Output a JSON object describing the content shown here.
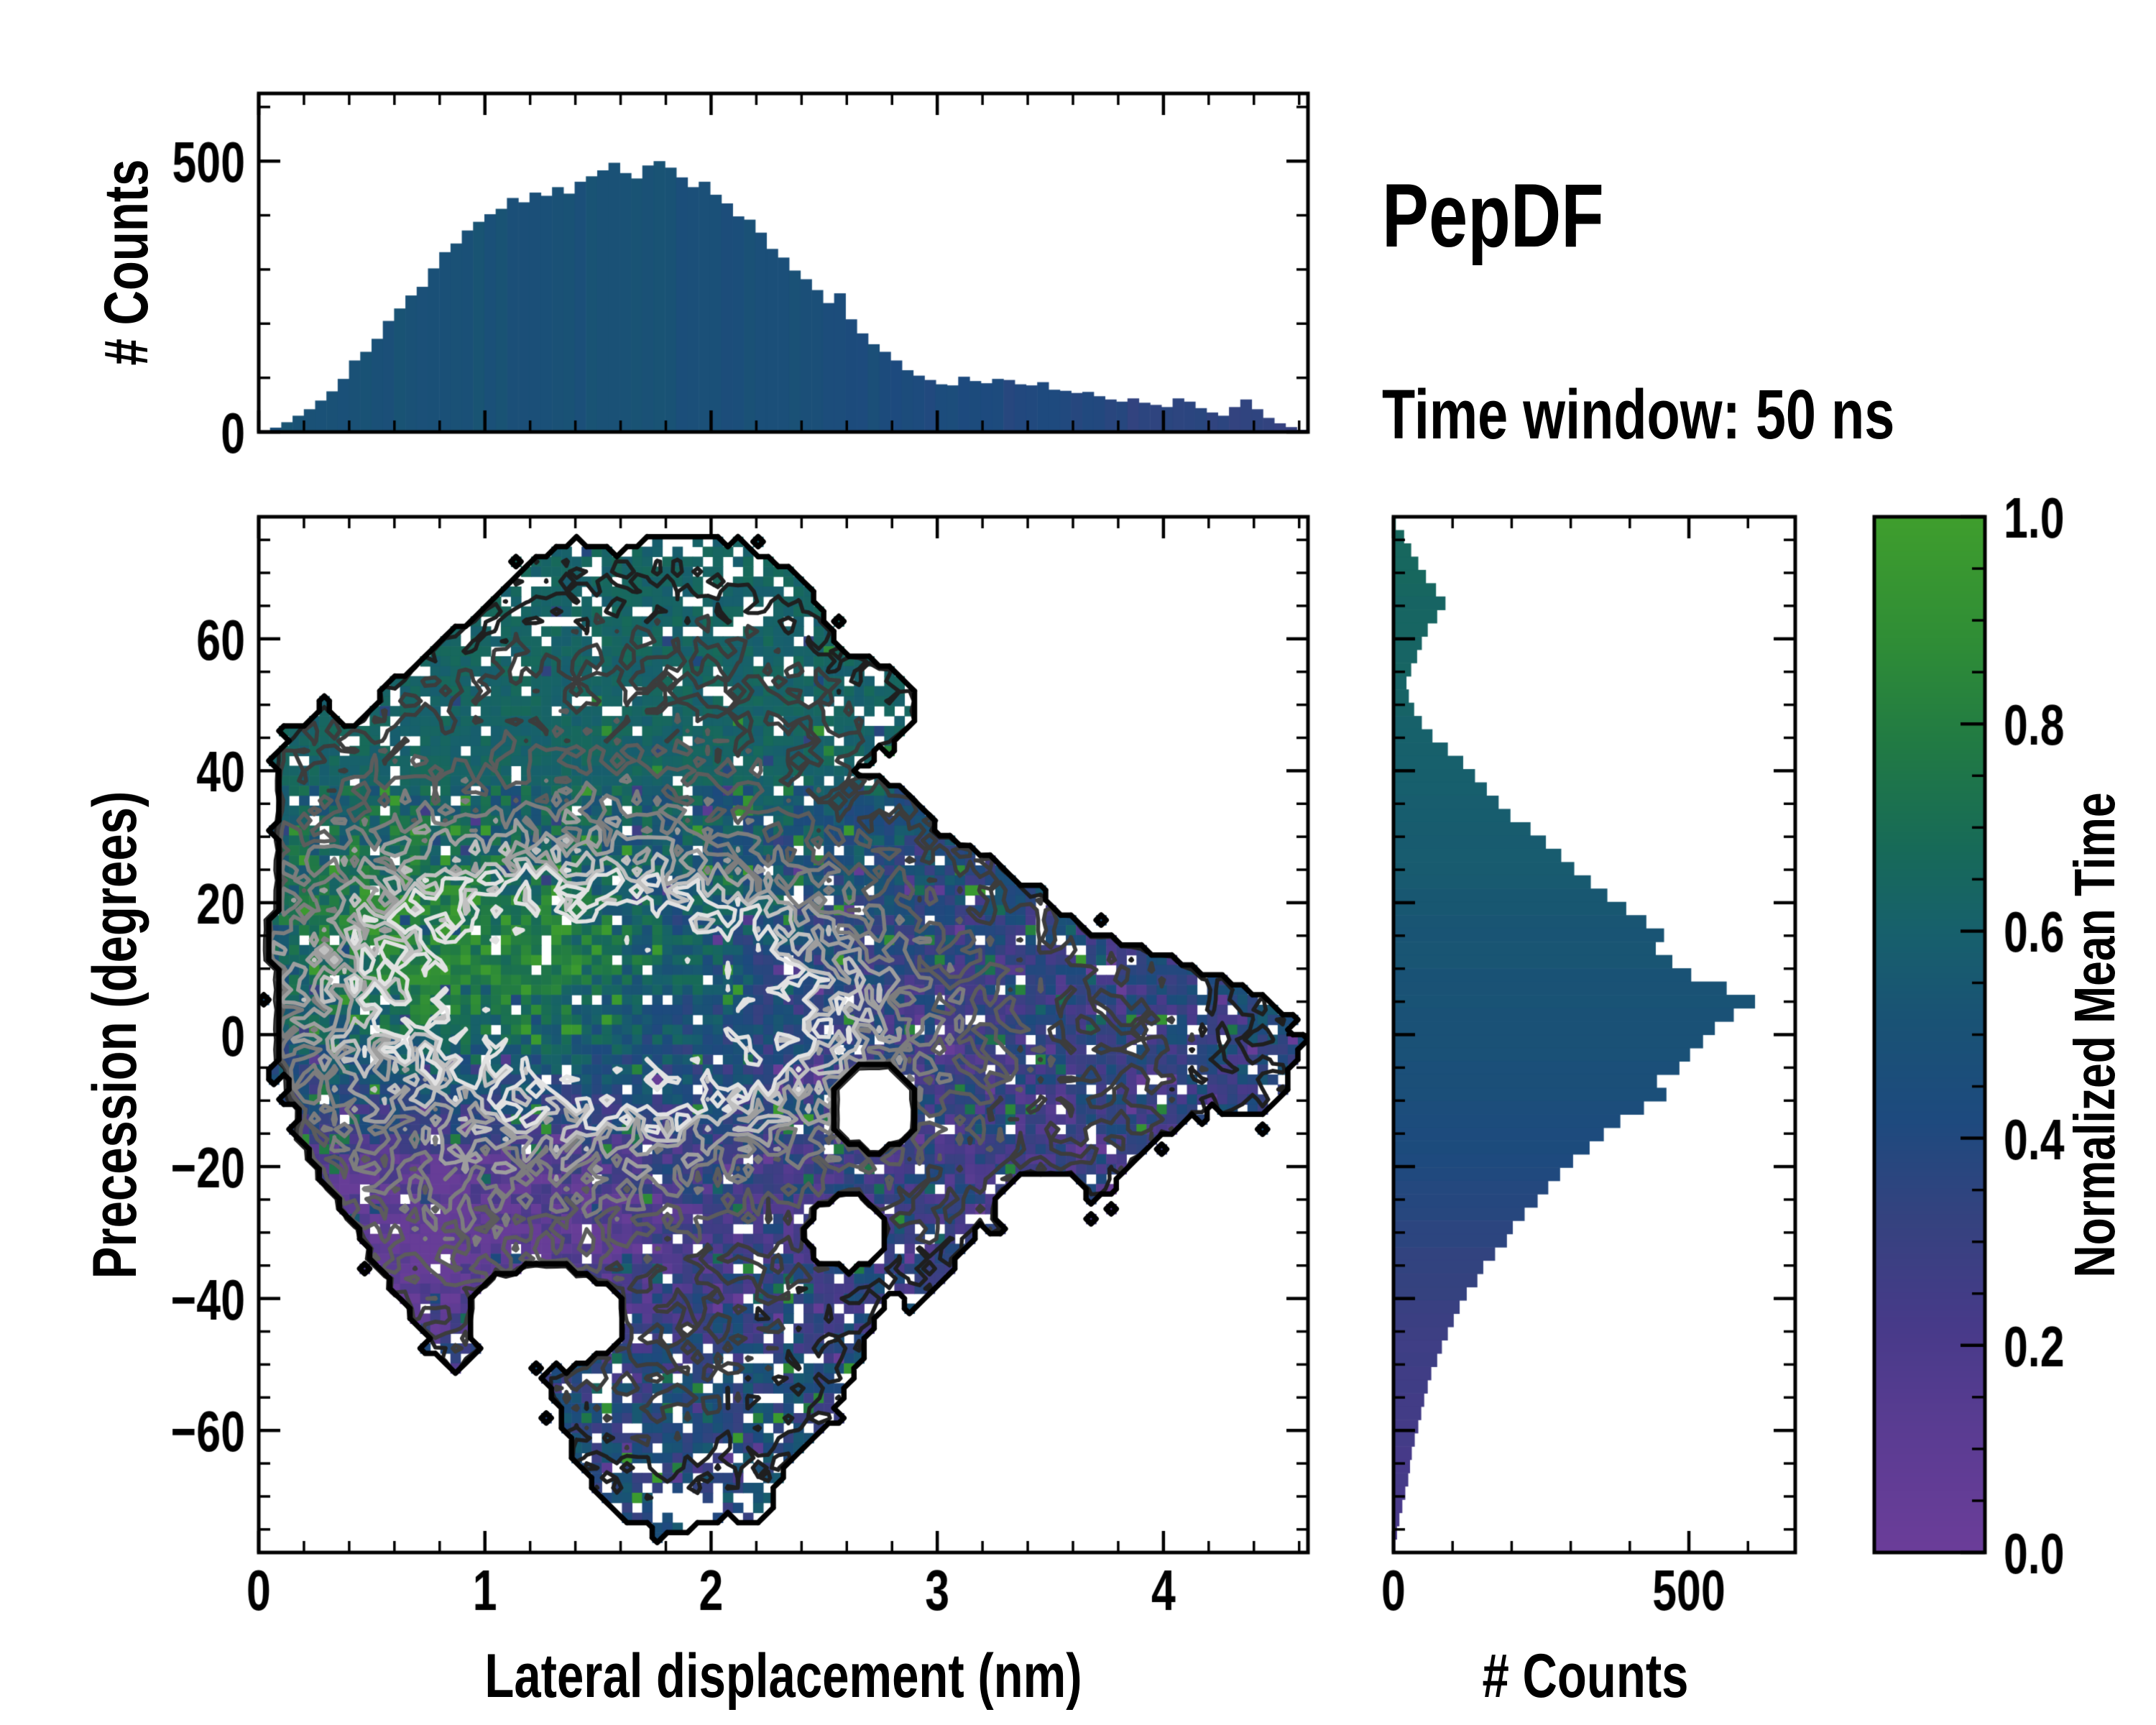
{
  "title": {
    "text": "PepDF",
    "subtitle": "Time window: 50 ns"
  },
  "axes": {
    "main": {
      "xlabel": "Lateral displacement (nm)",
      "ylabel": "Precession (degrees)",
      "xlim": [
        0,
        4.639
      ],
      "ylim": [
        -78.5,
        78.5
      ],
      "xticks": [
        0,
        1,
        2,
        3,
        4
      ],
      "xtick_labels": [
        "0",
        "1",
        "2",
        "3",
        "4"
      ],
      "x_minor": 0.2,
      "yticks": [
        60,
        40,
        20,
        0,
        -20,
        -40,
        -60
      ],
      "ytick_labels": [
        "60",
        "40",
        "20",
        "0",
        "−20",
        "−40",
        "−60"
      ],
      "y_minor": 5
    },
    "top": {
      "ylabel": "# Counts",
      "ylim": [
        0,
        625
      ],
      "yticks": [
        0,
        500
      ],
      "ytick_labels": [
        "0",
        "500"
      ],
      "y_minor": 100
    },
    "right": {
      "xlabel": "# Counts",
      "xlim": [
        0,
        680
      ],
      "xticks": [
        0,
        500
      ],
      "xtick_labels": [
        "0",
        "500"
      ],
      "x_minor": 100
    }
  },
  "colormap": {
    "label": "Normalized Mean Time",
    "ticks": [
      1.0,
      0.8,
      0.6,
      0.4,
      0.2,
      0.0
    ],
    "tick_labels": [
      "1.0",
      "0.8",
      "0.6",
      "0.4",
      "0.2",
      "0.0"
    ],
    "minor_step": 0.05,
    "stops": [
      [
        0.0,
        "#6b3d99"
      ],
      [
        0.12,
        "#5a3c92"
      ],
      [
        0.22,
        "#473a89"
      ],
      [
        0.32,
        "#35427f"
      ],
      [
        0.42,
        "#1d4a7e"
      ],
      [
        0.52,
        "#195374"
      ],
      [
        0.6,
        "#17606c"
      ],
      [
        0.68,
        "#176a58"
      ],
      [
        0.78,
        "#217a44"
      ],
      [
        0.88,
        "#2f8d36"
      ],
      [
        1.0,
        "#3f9e2d"
      ]
    ]
  },
  "chart_data": [
    {
      "type": "bar",
      "name": "top-marginal-histogram",
      "xlabel": "Lateral displacement (nm)",
      "ylabel": "# Counts",
      "x_start": 0,
      "bin_width": 0.05,
      "ylim": [
        0,
        625
      ],
      "values": [
        2,
        8,
        18,
        30,
        42,
        58,
        75,
        98,
        132,
        148,
        172,
        205,
        228,
        252,
        268,
        302,
        332,
        348,
        372,
        388,
        402,
        412,
        432,
        424,
        442,
        436,
        452,
        440,
        462,
        472,
        483,
        497,
        478,
        468,
        492,
        500,
        488,
        470,
        452,
        462,
        438,
        422,
        398,
        392,
        368,
        338,
        322,
        298,
        282,
        262,
        238,
        256,
        208,
        182,
        162,
        148,
        132,
        114,
        104,
        96,
        88,
        86,
        102,
        94,
        90,
        98,
        96,
        88,
        86,
        92,
        78,
        76,
        72,
        74,
        66,
        60,
        56,
        62,
        54,
        50,
        46,
        62,
        56,
        44,
        36,
        30,
        46,
        60,
        42,
        26,
        16,
        9,
        4
      ],
      "bar_value_tint_breakpoints": [
        [
          0,
          0.5
        ],
        [
          1.0,
          0.5
        ],
        [
          2.0,
          0.49
        ],
        [
          2.6,
          0.46
        ],
        [
          3.0,
          0.43
        ],
        [
          3.6,
          0.38
        ],
        [
          4.2,
          0.34
        ],
        [
          4.64,
          0.32
        ]
      ],
      "tint_noise": 0.06
    },
    {
      "type": "heatmap",
      "name": "main-2d-histogram",
      "description": "2D histogram of lateral displacement vs precession, colored by normalized mean time, with grayscale count contours and black occupancy outline",
      "xlim": [
        0,
        4.639
      ],
      "ylim": [
        -78.5,
        78.5
      ],
      "grid": {
        "nx": 104,
        "ny": 104
      },
      "seed": 12345,
      "boundary_polygon": [
        [
          0.1,
          44
        ],
        [
          0.28,
          50
        ],
        [
          0.42,
          46
        ],
        [
          0.55,
          52
        ],
        [
          0.72,
          57
        ],
        [
          0.88,
          61
        ],
        [
          1.02,
          66
        ],
        [
          1.18,
          71
        ],
        [
          1.38,
          75
        ],
        [
          1.6,
          73
        ],
        [
          1.8,
          76
        ],
        [
          2.02,
          75
        ],
        [
          2.22,
          73
        ],
        [
          2.4,
          69
        ],
        [
          2.5,
          64
        ],
        [
          2.58,
          58
        ],
        [
          2.8,
          56
        ],
        [
          2.92,
          51
        ],
        [
          2.86,
          45
        ],
        [
          2.7,
          43
        ],
        [
          2.62,
          40
        ],
        [
          2.8,
          38
        ],
        [
          2.94,
          35
        ],
        [
          3.02,
          30
        ],
        [
          3.18,
          28
        ],
        [
          3.4,
          22
        ],
        [
          3.65,
          16
        ],
        [
          3.9,
          13
        ],
        [
          4.15,
          10
        ],
        [
          4.38,
          7
        ],
        [
          4.55,
          3
        ],
        [
          4.6,
          -3
        ],
        [
          4.52,
          -9
        ],
        [
          4.38,
          -13
        ],
        [
          4.2,
          -11
        ],
        [
          4.02,
          -15
        ],
        [
          3.85,
          -20
        ],
        [
          3.68,
          -26
        ],
        [
          3.52,
          -24
        ],
        [
          3.36,
          -31
        ],
        [
          3.18,
          -29
        ],
        [
          3.05,
          -36
        ],
        [
          2.92,
          -41
        ],
        [
          2.78,
          -39
        ],
        [
          2.68,
          -47
        ],
        [
          2.58,
          -55
        ],
        [
          2.47,
          -61
        ],
        [
          2.3,
          -67
        ],
        [
          2.24,
          -74
        ],
        [
          2.05,
          -73
        ],
        [
          1.85,
          -76
        ],
        [
          1.65,
          -74
        ],
        [
          1.5,
          -70
        ],
        [
          1.4,
          -64
        ],
        [
          1.33,
          -57
        ],
        [
          1.24,
          -51
        ],
        [
          1.1,
          -49
        ],
        [
          0.98,
          -47
        ],
        [
          0.86,
          -51
        ],
        [
          0.72,
          -45
        ],
        [
          0.6,
          -39
        ],
        [
          0.5,
          -34
        ],
        [
          0.4,
          -28
        ],
        [
          0.3,
          -23
        ],
        [
          0.21,
          -17
        ],
        [
          0.14,
          -9
        ],
        [
          0.09,
          -1
        ],
        [
          0.07,
          8
        ],
        [
          0.06,
          16
        ],
        [
          0.09,
          24
        ],
        [
          0.07,
          32
        ],
        [
          0.09,
          39
        ]
      ],
      "holes": [
        {
          "x": 1.27,
          "y": -43,
          "rx": 0.34,
          "ry": 8.0
        },
        {
          "x": 2.72,
          "y": -11,
          "rx": 0.2,
          "ry": 6.5
        },
        {
          "x": 2.6,
          "y": -30,
          "rx": 0.18,
          "ry": 5.5
        },
        {
          "x": 3.46,
          "y": -26,
          "rx": 0.2,
          "ry": 5.5
        }
      ],
      "count_blobs": [
        {
          "x": 1.25,
          "y": 8,
          "sx": 0.55,
          "sy": 13,
          "amp": 27
        },
        {
          "x": 1.95,
          "y": 3,
          "sx": 0.5,
          "sy": 11,
          "amp": 23
        },
        {
          "x": 1.6,
          "y": 5,
          "sx": 1.1,
          "sy": 26,
          "amp": 9
        },
        {
          "x": 1.7,
          "y": 52,
          "sx": 0.9,
          "sy": 15,
          "amp": 2.2
        },
        {
          "x": 0.4,
          "y": 12,
          "sx": 0.5,
          "sy": 18,
          "amp": 6
        },
        {
          "x": 3.4,
          "y": -6,
          "sx": 0.9,
          "sy": 18,
          "amp": 2.6
        },
        {
          "x": 1.8,
          "y": -56,
          "sx": 0.55,
          "sy": 11,
          "amp": 2.4
        },
        {
          "x": 0.8,
          "y": -28,
          "sx": 0.6,
          "sy": 13,
          "amp": 4
        }
      ],
      "count_noise": {
        "base": 0.55,
        "spread": 0.9
      },
      "occupancy": {
        "threshold": 0.45,
        "hole_scale": 0.38,
        "hole_decay": 3.2,
        "hole_min": 0.035,
        "outside_spark_p": 0.07,
        "outside_spark_dist": 0.075
      },
      "value_y_breakpoints": [
        [
          78.5,
          0.63
        ],
        [
          42,
          0.62
        ],
        [
          34,
          0.56
        ],
        [
          24,
          0.53
        ],
        [
          12,
          0.5
        ],
        [
          0,
          0.47
        ],
        [
          -10,
          0.43
        ],
        [
          -20,
          0.35
        ],
        [
          -32,
          0.3
        ],
        [
          -48,
          0.4
        ],
        [
          -62,
          0.44
        ],
        [
          -78.5,
          0.45
        ]
      ],
      "value_blobs": [
        {
          "x": 1.15,
          "y": 11,
          "sx": 0.5,
          "sy": 12,
          "amp": 0.3
        },
        {
          "x": 0.45,
          "y": 16,
          "sx": 0.35,
          "sy": 14,
          "amp": 0.18
        },
        {
          "x": 0.8,
          "y": -30,
          "sx": 0.7,
          "sy": 14,
          "amp": -0.3
        },
        {
          "x": 3.35,
          "y": 6,
          "sx": 0.8,
          "sy": 18,
          "amp": -0.2
        }
      ],
      "value_noise": 0.16,
      "sparks": {
        "green_p": 0.05,
        "green_amp": 0.33,
        "purple_p": 0.03,
        "purple_amp": -0.3
      },
      "uniform_top": {
        "y_above": 38,
        "v": 0.63,
        "noise": 0.05,
        "green_p": 0.012,
        "purple_p": 0.008,
        "spark_amp": 0.25
      },
      "contours": {
        "boundary_level": 0.5,
        "boundary_color": "#000000",
        "boundary_width": 7.5,
        "levels": [
          1.6,
          3.2,
          6,
          9.5,
          14,
          19,
          24
        ],
        "colors": [
          "#1f1f1f",
          "#3c3c3c",
          "#5c5c5c",
          "#7d7d7d",
          "#9e9e9e",
          "#c0c0c0",
          "#e2e2e2"
        ],
        "width": 5.5
      }
    },
    {
      "type": "bar",
      "name": "right-marginal-histogram",
      "orientation": "horizontal",
      "xlabel": "# Counts",
      "ylabel": "Precession (degrees)",
      "y_start": 78.5,
      "bin_height": -2.013,
      "xlim": [
        0,
        680
      ],
      "values": [
        4,
        18,
        30,
        42,
        55,
        72,
        88,
        74,
        58,
        48,
        40,
        30,
        22,
        26,
        35,
        48,
        66,
        92,
        118,
        138,
        158,
        178,
        198,
        232,
        258,
        284,
        306,
        334,
        362,
        394,
        428,
        458,
        444,
        472,
        504,
        564,
        612,
        576,
        544,
        524,
        502,
        484,
        446,
        462,
        424,
        384,
        356,
        332,
        304,
        282,
        262,
        244,
        222,
        202,
        192,
        172,
        152,
        142,
        124,
        112,
        102,
        92,
        82,
        74,
        64,
        58,
        52,
        47,
        42,
        36,
        31,
        28,
        25,
        20,
        15,
        10,
        6,
        3
      ],
      "row_value_breakpoints": [
        [
          78.5,
          0.66
        ],
        [
          55,
          0.63
        ],
        [
          40,
          0.6
        ],
        [
          25,
          0.56
        ],
        [
          10,
          0.52
        ],
        [
          0,
          0.5
        ],
        [
          -15,
          0.44
        ],
        [
          -30,
          0.36
        ],
        [
          -45,
          0.28
        ],
        [
          -60,
          0.24
        ],
        [
          -78.5,
          0.2
        ]
      ],
      "tint_noise": 0.02
    }
  ]
}
